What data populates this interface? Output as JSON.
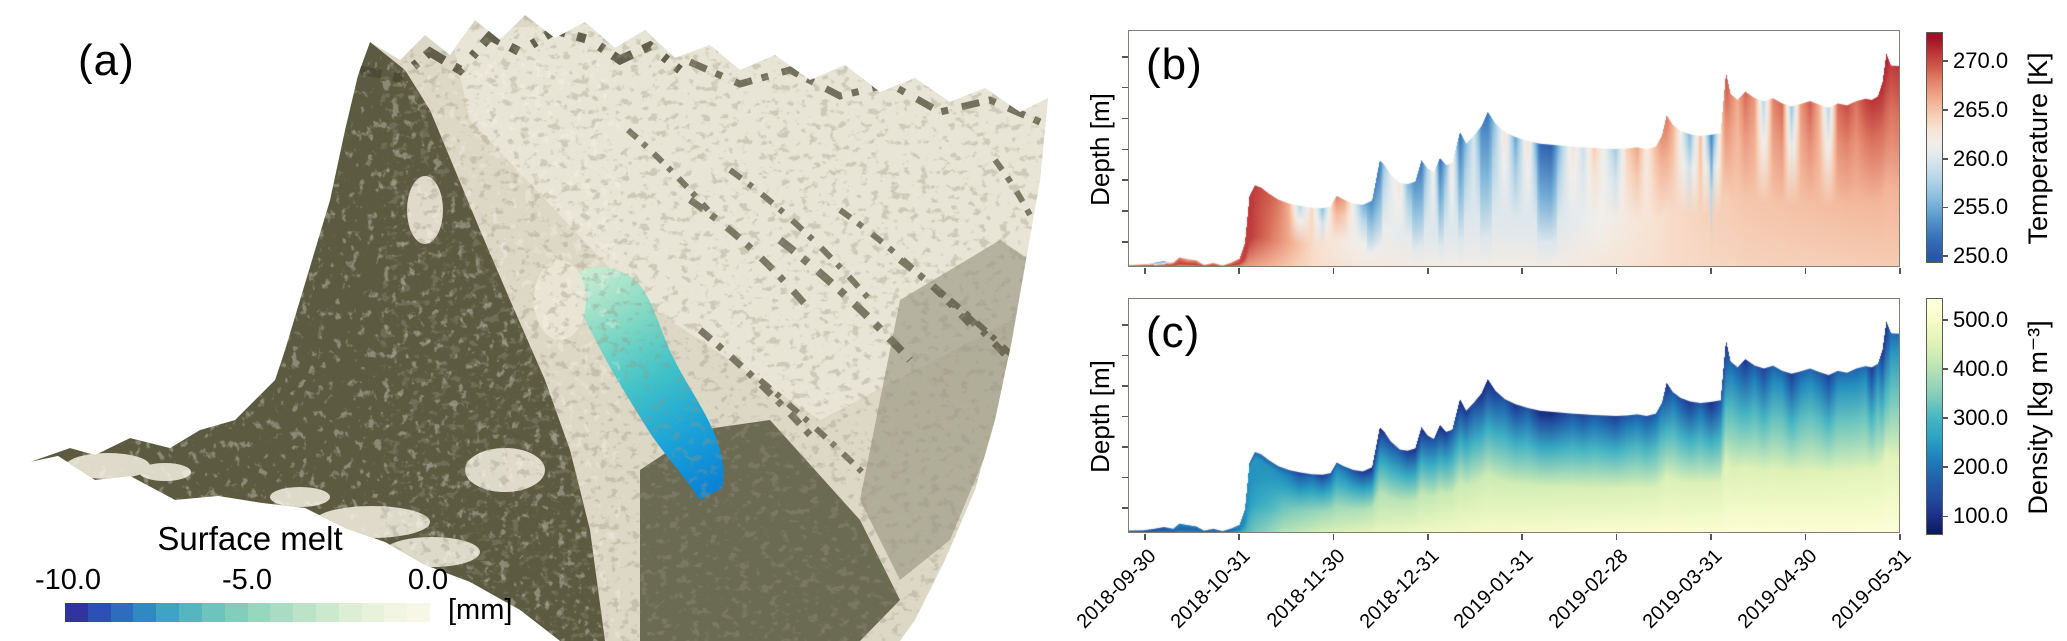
{
  "figure": {
    "background": "#ffffff"
  },
  "panels": {
    "a": {
      "label": "(a)",
      "type": "3d-terrain-render",
      "legend": {
        "title": "Surface melt",
        "unit": "[mm]",
        "tick_labels": [
          "-10.0",
          "-5.0",
          "0.0"
        ],
        "tick_values": [
          -10.0,
          -5.0,
          0.0
        ],
        "colors": [
          "#31339f",
          "#2d50b7",
          "#2e6cc0",
          "#2e8ac1",
          "#3fa3c3",
          "#55b6c0",
          "#6ec4bc",
          "#83ceba",
          "#97d6bf",
          "#aadcc3",
          "#bce3c8",
          "#cde9cd",
          "#dceed3",
          "#e8f2da",
          "#f1f5e2",
          "#f7f7e8"
        ]
      },
      "terrain_colors": {
        "snow": "#ddd8c6",
        "rock_dark": "#5c5b41",
        "rock_mid": "#6b6a52",
        "glacier_top": "#c2ead0",
        "glacier_mid": "#3fc2c8",
        "glacier_bottom": "#0b83d6"
      }
    },
    "b": {
      "label": "(b)",
      "ylabel": "Depth [m]"
    },
    "c": {
      "label": "(c)",
      "ylabel": "Depth [m]"
    }
  },
  "chart_data": [
    {
      "id": "b",
      "type": "area",
      "title_label": "(b)",
      "ylabel": "Depth [m]",
      "legend_position": "right-colorbar",
      "grid": false,
      "colorbar": {
        "label": "Temperature [K]",
        "ticks": [
          "270.0",
          "265.0",
          "260.0",
          "255.0",
          "250.0"
        ],
        "tick_values": [
          270,
          265,
          260,
          255,
          250
        ],
        "range": [
          249.3,
          273
        ],
        "cmap": [
          [
            250,
            "#2a58a9"
          ],
          [
            252,
            "#3a74bb"
          ],
          [
            254,
            "#5b9bce"
          ],
          [
            256,
            "#8abedd"
          ],
          [
            258,
            "#b7d6e8"
          ],
          [
            260,
            "#dde7ec"
          ],
          [
            261.5,
            "#f0efec"
          ],
          [
            263,
            "#f7e4d6"
          ],
          [
            264.5,
            "#f6cdb4"
          ],
          [
            266,
            "#f2b094"
          ],
          [
            268,
            "#e2836a"
          ],
          [
            269.5,
            "#cf5a4c"
          ],
          [
            271,
            "#bb3337"
          ],
          [
            272.5,
            "#9e1126"
          ]
        ]
      },
      "profile_x": [
        0.0,
        0.02,
        0.034,
        0.046,
        0.058,
        0.066,
        0.076,
        0.088,
        0.098,
        0.11,
        0.122,
        0.134,
        0.144,
        0.151,
        0.157,
        0.164,
        0.172,
        0.182,
        0.194,
        0.208,
        0.222,
        0.238,
        0.252,
        0.262,
        0.27,
        0.28,
        0.292,
        0.304,
        0.316,
        0.326,
        0.332,
        0.34,
        0.352,
        0.362,
        0.372,
        0.38,
        0.388,
        0.396,
        0.404,
        0.412,
        0.42,
        0.43,
        0.438,
        0.448,
        0.458,
        0.466,
        0.476,
        0.488,
        0.502,
        0.518,
        0.534,
        0.548,
        0.562,
        0.576,
        0.59,
        0.604,
        0.618,
        0.632,
        0.646,
        0.66,
        0.672,
        0.684,
        0.692,
        0.698,
        0.706,
        0.716,
        0.728,
        0.742,
        0.756,
        0.768,
        0.775,
        0.781,
        0.79,
        0.8,
        0.812,
        0.824,
        0.836,
        0.848,
        0.86,
        0.872,
        0.884,
        0.896,
        0.908,
        0.92,
        0.932,
        0.944,
        0.956,
        0.964,
        0.972,
        0.978,
        0.983,
        0.989,
        1.0
      ],
      "profile_h": [
        0.01,
        0.012,
        0.018,
        0.025,
        0.018,
        0.04,
        0.034,
        0.028,
        0.01,
        0.018,
        0.008,
        0.02,
        0.035,
        0.1,
        0.3,
        0.345,
        0.335,
        0.31,
        0.285,
        0.268,
        0.258,
        0.25,
        0.248,
        0.255,
        0.3,
        0.283,
        0.268,
        0.262,
        0.28,
        0.45,
        0.43,
        0.39,
        0.355,
        0.35,
        0.36,
        0.45,
        0.415,
        0.4,
        0.46,
        0.43,
        0.44,
        0.57,
        0.52,
        0.555,
        0.595,
        0.655,
        0.605,
        0.57,
        0.548,
        0.532,
        0.52,
        0.516,
        0.512,
        0.508,
        0.505,
        0.502,
        0.5,
        0.498,
        0.5,
        0.505,
        0.498,
        0.508,
        0.555,
        0.64,
        0.6,
        0.575,
        0.56,
        0.553,
        0.558,
        0.565,
        0.82,
        0.73,
        0.705,
        0.74,
        0.713,
        0.7,
        0.712,
        0.69,
        0.678,
        0.688,
        0.7,
        0.685,
        0.672,
        0.69,
        0.682,
        0.7,
        0.71,
        0.705,
        0.72,
        0.78,
        0.9,
        0.85,
        0.848
      ],
      "surface_temperature": [
        262,
        265,
        254,
        253,
        267,
        268,
        266,
        267,
        264,
        266,
        263,
        267,
        269,
        270.5,
        271,
        270.5,
        270,
        269.5,
        268.5,
        266,
        258,
        264,
        256,
        263,
        268,
        266.5,
        261,
        255.5,
        253,
        252,
        257,
        260.5,
        263,
        256,
        253.5,
        252,
        258,
        262,
        251.5,
        256,
        263,
        251.5,
        256,
        260,
        253,
        252,
        257,
        263,
        254.5,
        263.5,
        251,
        250.5,
        257.5,
        263,
        259,
        264.5,
        261,
        257,
        264,
        266.5,
        262,
        265.5,
        267.5,
        268.5,
        266,
        261.5,
        255.5,
        265.5,
        252.5,
        263,
        270,
        268,
        266,
        269,
        267,
        258,
        268,
        269,
        256.5,
        267,
        269.5,
        266,
        258,
        269,
        270,
        268.5,
        270.5,
        271,
        271,
        271.5,
        272,
        270.5,
        271
      ],
      "deep_temperature": [
        [
          0,
          270.5
        ],
        [
          0.16,
          270.5
        ],
        [
          0.2,
          267
        ],
        [
          0.24,
          263.5
        ],
        [
          0.3,
          261.5
        ],
        [
          0.4,
          260
        ],
        [
          0.55,
          260
        ],
        [
          0.63,
          262
        ],
        [
          0.7,
          263.5
        ],
        [
          0.8,
          264.8
        ],
        [
          1,
          265.8
        ]
      ]
    },
    {
      "id": "c",
      "type": "area",
      "title_label": "(c)",
      "ylabel": "Depth [m]",
      "legend_position": "right-colorbar",
      "grid": false,
      "x_tick_labels": [
        "2018-09-30",
        "2018-10-31",
        "2018-11-30",
        "2018-12-31",
        "2019-01-31",
        "2019-02-28",
        "2019-03-31",
        "2019-04-30",
        "2019-05-31"
      ],
      "colorbar": {
        "label": "Density [kg m⁻³]",
        "ticks": [
          "500.0",
          "400.0",
          "300.0",
          "200.0",
          "100.0"
        ],
        "tick_values": [
          500,
          400,
          300,
          200,
          100
        ],
        "range": [
          62,
          545
        ],
        "cmap": [
          [
            60,
            "#081d58"
          ],
          [
            100,
            "#1f2f88"
          ],
          [
            140,
            "#234ea0"
          ],
          [
            180,
            "#2264ae"
          ],
          [
            220,
            "#1f83bc"
          ],
          [
            260,
            "#2da4c2"
          ],
          [
            300,
            "#45b5c4"
          ],
          [
            340,
            "#7bcbbb"
          ],
          [
            380,
            "#a2dab9"
          ],
          [
            420,
            "#c7e9b4"
          ],
          [
            460,
            "#e4f4b8"
          ],
          [
            500,
            "#f7fbc8"
          ],
          [
            530,
            "#ffffd9"
          ]
        ]
      },
      "profile_x": [
        0.0,
        0.02,
        0.034,
        0.046,
        0.058,
        0.066,
        0.076,
        0.088,
        0.098,
        0.11,
        0.122,
        0.134,
        0.144,
        0.151,
        0.157,
        0.164,
        0.172,
        0.182,
        0.194,
        0.208,
        0.222,
        0.238,
        0.252,
        0.262,
        0.27,
        0.28,
        0.292,
        0.304,
        0.316,
        0.326,
        0.332,
        0.34,
        0.352,
        0.362,
        0.372,
        0.38,
        0.388,
        0.396,
        0.404,
        0.412,
        0.42,
        0.43,
        0.438,
        0.448,
        0.458,
        0.466,
        0.476,
        0.488,
        0.502,
        0.518,
        0.534,
        0.548,
        0.562,
        0.576,
        0.59,
        0.604,
        0.618,
        0.632,
        0.646,
        0.66,
        0.672,
        0.684,
        0.692,
        0.698,
        0.706,
        0.716,
        0.728,
        0.742,
        0.756,
        0.768,
        0.775,
        0.781,
        0.79,
        0.8,
        0.812,
        0.824,
        0.836,
        0.848,
        0.86,
        0.872,
        0.884,
        0.896,
        0.908,
        0.92,
        0.932,
        0.944,
        0.956,
        0.964,
        0.972,
        0.978,
        0.983,
        0.989,
        1.0
      ],
      "profile_h": [
        0.01,
        0.012,
        0.018,
        0.025,
        0.018,
        0.04,
        0.034,
        0.028,
        0.01,
        0.018,
        0.008,
        0.02,
        0.035,
        0.1,
        0.3,
        0.345,
        0.335,
        0.31,
        0.285,
        0.268,
        0.258,
        0.25,
        0.248,
        0.255,
        0.3,
        0.283,
        0.268,
        0.262,
        0.28,
        0.45,
        0.43,
        0.39,
        0.355,
        0.35,
        0.36,
        0.45,
        0.415,
        0.4,
        0.46,
        0.43,
        0.44,
        0.57,
        0.52,
        0.555,
        0.595,
        0.655,
        0.605,
        0.57,
        0.548,
        0.532,
        0.52,
        0.516,
        0.512,
        0.508,
        0.505,
        0.502,
        0.5,
        0.498,
        0.5,
        0.505,
        0.498,
        0.508,
        0.555,
        0.64,
        0.6,
        0.575,
        0.56,
        0.553,
        0.558,
        0.565,
        0.82,
        0.73,
        0.705,
        0.74,
        0.713,
        0.7,
        0.712,
        0.69,
        0.678,
        0.688,
        0.7,
        0.685,
        0.672,
        0.69,
        0.682,
        0.7,
        0.71,
        0.705,
        0.72,
        0.78,
        0.9,
        0.85,
        0.848
      ],
      "surface_density": [
        142,
        158,
        101,
        96,
        168,
        174,
        163,
        168,
        153,
        163,
        148,
        168,
        179,
        187,
        189,
        187,
        184,
        181,
        176,
        163,
        122,
        153,
        111,
        148,
        174,
        166,
        137,
        109,
        96,
        90,
        116,
        135,
        148,
        111,
        98,
        90,
        122,
        142,
        88,
        111,
        148,
        88,
        111,
        132,
        96,
        90,
        116,
        148,
        103,
        150,
        85,
        83,
        119,
        148,
        127,
        155,
        137,
        116,
        153,
        166,
        142,
        161,
        171,
        100,
        163,
        140,
        109,
        161,
        93,
        148,
        95,
        174,
        163,
        105,
        168,
        122,
        174,
        179,
        114,
        168,
        181,
        163,
        122,
        179,
        184,
        176,
        187,
        110,
        189,
        100,
        90,
        187,
        189
      ],
      "deep_density": [
        [
          0,
          240
        ],
        [
          0.13,
          260
        ],
        [
          0.16,
          330
        ],
        [
          0.2,
          400
        ],
        [
          0.25,
          440
        ],
        [
          0.32,
          470
        ],
        [
          0.42,
          495
        ],
        [
          0.55,
          510
        ],
        [
          0.7,
          518
        ],
        [
          1,
          528
        ]
      ]
    }
  ]
}
